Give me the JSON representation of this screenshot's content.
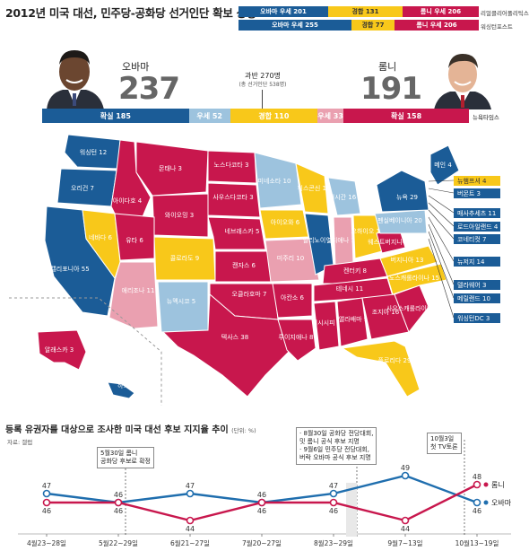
{
  "title": "2012년 미국 대선, 민주당-공화당 선거인단 확보 상황",
  "colors": {
    "safe_dem": "#1b5c97",
    "lean_dem": "#9dc3de",
    "tossup": "#f8c81a",
    "lean_rep": "#eaa0b0",
    "safe_rep": "#c8174d",
    "obama_line": "#1f6eae",
    "romney_line": "#c8174d"
  },
  "legend": {
    "rows": [
      {
        "source": "리얼클리어폴리틱스",
        "segments": [
          {
            "label": "오바마 우세 201",
            "color": "#1b5c97"
          },
          {
            "label": "경합 131",
            "color": "#f8c81a"
          },
          {
            "label": "롬니 우세 206",
            "color": "#c8174d"
          }
        ]
      },
      {
        "source": "워싱턴포스트",
        "segments": [
          {
            "label": "오바마 우세 255",
            "color": "#1b5c97"
          },
          {
            "label": "경합 77",
            "color": "#f8c81a"
          },
          {
            "label": "롬니 우세 206",
            "color": "#c8174d"
          }
        ]
      }
    ]
  },
  "candidates": {
    "obama": {
      "name": "오바마",
      "number": "237"
    },
    "romney": {
      "name": "롬니",
      "number": "191"
    }
  },
  "majority": {
    "label": "과반 270명",
    "note": "(총 선거인단 538명)"
  },
  "electoral_bar": {
    "source": "뉴욕타임스",
    "segments": [
      {
        "label": "확실 185",
        "value": 185,
        "color": "#1b5c97"
      },
      {
        "label": "우세 52",
        "value": 52,
        "color": "#9dc3de"
      },
      {
        "label": "경합 110",
        "value": 110,
        "color": "#f8c81a"
      },
      {
        "label": "우세 33",
        "value": 33,
        "color": "#eaa0b0"
      },
      {
        "label": "확실 158",
        "value": 158,
        "color": "#c8174d"
      }
    ]
  },
  "map": {
    "states": [
      {
        "label": "워싱턴 12",
        "cat": "safe_dem"
      },
      {
        "label": "오리건 7",
        "cat": "safe_dem"
      },
      {
        "label": "캘리포니아 55",
        "cat": "safe_dem"
      },
      {
        "label": "네바다 6",
        "cat": "tossup"
      },
      {
        "label": "아이다호 4",
        "cat": "safe_rep"
      },
      {
        "label": "몬태나 3",
        "cat": "safe_rep"
      },
      {
        "label": "와이오밍 3",
        "cat": "safe_rep"
      },
      {
        "label": "유타 6",
        "cat": "safe_rep"
      },
      {
        "label": "애리조나 11",
        "cat": "lean_rep"
      },
      {
        "label": "콜로라도 9",
        "cat": "tossup"
      },
      {
        "label": "뉴멕시코 5",
        "cat": "lean_dem"
      },
      {
        "label": "노스다코타 3",
        "cat": "safe_rep"
      },
      {
        "label": "사우스다코타 3",
        "cat": "safe_rep"
      },
      {
        "label": "네브래스카 5",
        "cat": "safe_rep"
      },
      {
        "label": "캔자스 6",
        "cat": "safe_rep"
      },
      {
        "label": "오클라호마 7",
        "cat": "safe_rep"
      },
      {
        "label": "텍사스 38",
        "cat": "safe_rep"
      },
      {
        "label": "미네소타 10",
        "cat": "lean_dem"
      },
      {
        "label": "아이오와 6",
        "cat": "tossup"
      },
      {
        "label": "미주리 10",
        "cat": "lean_rep"
      },
      {
        "label": "아칸소 6",
        "cat": "safe_rep"
      },
      {
        "label": "루이지애나 8",
        "cat": "safe_rep"
      },
      {
        "label": "위스콘신 10",
        "cat": "tossup"
      },
      {
        "label": "일리노이 20",
        "cat": "safe_dem"
      },
      {
        "label": "미시간 16",
        "cat": "lean_dem"
      },
      {
        "label": "인디애나 11",
        "cat": "lean_rep"
      },
      {
        "label": "오하이오 18",
        "cat": "tossup"
      },
      {
        "label": "켄터키 8",
        "cat": "safe_rep"
      },
      {
        "label": "테네시 11",
        "cat": "safe_rep"
      },
      {
        "label": "미시시피 6",
        "cat": "safe_rep"
      },
      {
        "label": "앨라배마 9",
        "cat": "safe_rep"
      },
      {
        "label": "조지아 16",
        "cat": "safe_rep"
      },
      {
        "label": "플로리다 29",
        "cat": "tossup"
      },
      {
        "label": "사우스캐롤라이나 9",
        "cat": "safe_rep"
      },
      {
        "label": "노스캐롤라이나 15",
        "cat": "tossup"
      },
      {
        "label": "버지니아 13",
        "cat": "tossup"
      },
      {
        "label": "웨스트버지니아 5",
        "cat": "safe_rep"
      },
      {
        "label": "펜실베이니아 20",
        "cat": "lean_dem"
      },
      {
        "label": "뉴욕 29",
        "cat": "safe_dem"
      },
      {
        "label": "메인 4",
        "cat": "safe_dem"
      },
      {
        "label": "알래스카 3",
        "cat": "safe_rep"
      },
      {
        "label": "하와이 4",
        "cat": "safe_dem"
      }
    ],
    "side_labels": [
      {
        "label": "뉴햄프셔 4",
        "cat": "tossup"
      },
      {
        "label": "버몬트 3",
        "cat": "safe_dem"
      },
      {
        "label": "매사추세츠 11",
        "cat": "safe_dem"
      },
      {
        "label": "로드아일랜드 4",
        "cat": "safe_dem"
      },
      {
        "label": "코네티컷 7",
        "cat": "safe_dem"
      },
      {
        "label": "뉴저지 14",
        "cat": "safe_dem"
      },
      {
        "label": "델라웨어 3",
        "cat": "safe_dem"
      },
      {
        "label": "메릴랜드 10",
        "cat": "safe_dem"
      },
      {
        "label": "워싱턴DC 3",
        "cat": "safe_dem"
      }
    ]
  },
  "line_chart": {
    "title": "등록 유권자를 대상으로 조사한 미국 대선 후보 지지율 추이",
    "unit": "(단위: %)",
    "source": "자료: 갤럽",
    "annotations": [
      {
        "lines": [
          "5월30일 롬니",
          "공화당 후보로 확정"
        ]
      },
      {
        "lines": [
          "· 8월30일 공화당 전당대회,",
          "  밋 롬니 공식 후보 지명",
          "· 9월6일 민주당 전당대회,",
          "  버락 오바마 공식 후보 지명"
        ]
      },
      {
        "lines": [
          "10월3일",
          "첫 TV토론"
        ]
      }
    ]
  },
  "chart_data": {
    "type": "line",
    "title": "등록 유권자를 대상으로 조사한 미국 대선 후보 지지율 추이",
    "unit": "%",
    "categories": [
      "4월23~28일",
      "5월22~29일",
      "6월21~27일",
      "7월20~27일",
      "8월23~29일",
      "9월7~13일",
      "10월13~19일"
    ],
    "series": [
      {
        "name": "오바마",
        "values": [
          47,
          46,
          47,
          46,
          47,
          49,
          46
        ]
      },
      {
        "name": "롬니",
        "values": [
          46,
          46,
          44,
          46,
          46,
          44,
          48
        ]
      }
    ]
  }
}
